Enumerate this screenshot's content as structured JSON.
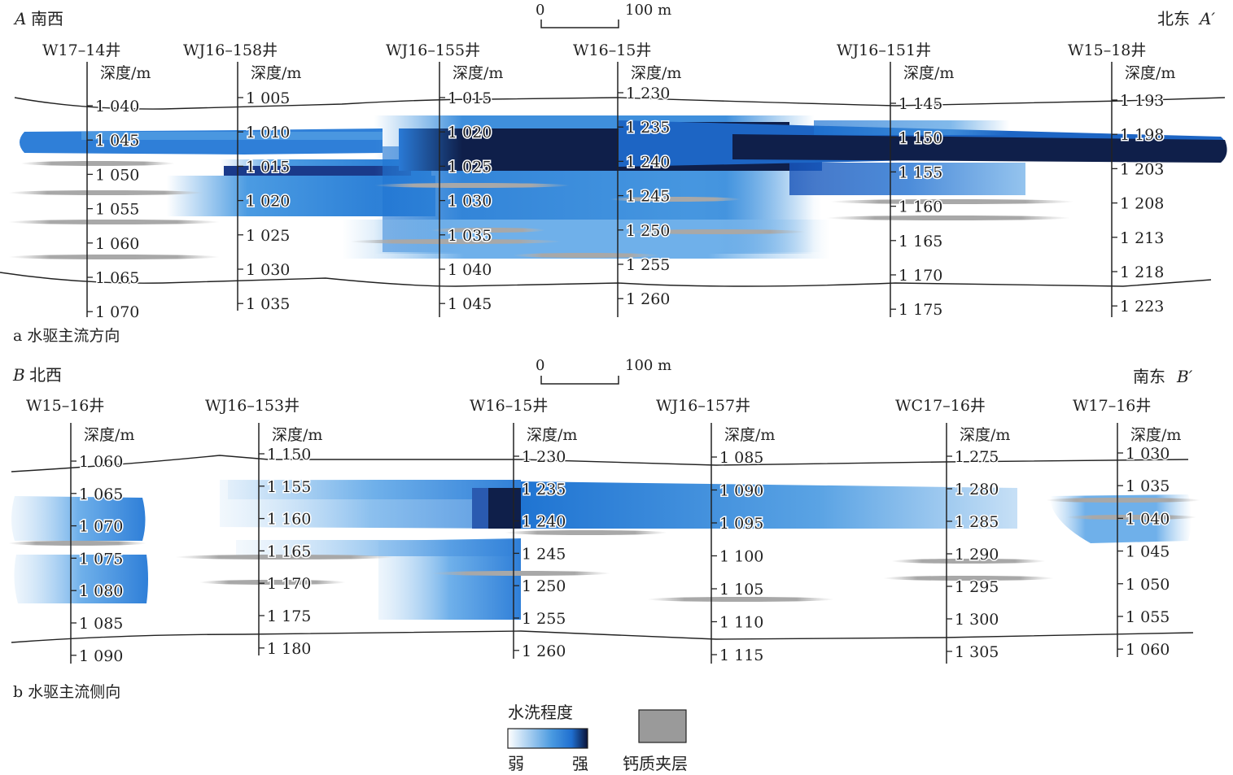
{
  "section_a": {
    "left_letter": "A",
    "left_dir": "南西",
    "right_dir": "北东",
    "right_letter": "A′",
    "caption": "a 水驱主流方向",
    "scale": {
      "zero": "0",
      "len": "100 m"
    },
    "wells": [
      {
        "name": "W17–14井",
        "depth_label": "深度/m",
        "ticks": [
          "1 040",
          "1 045",
          "1 050",
          "1 055",
          "1 060",
          "1 065",
          "1 070"
        ]
      },
      {
        "name": "WJ16–158井",
        "depth_label": "深度/m",
        "ticks": [
          "1 005",
          "1 010",
          "1 015",
          "1 020",
          "1 025",
          "1 030",
          "1 035"
        ]
      },
      {
        "name": "WJ16–155井",
        "depth_label": "深度/m",
        "ticks": [
          "1 015",
          "1 020",
          "1 025",
          "1 030",
          "1 035",
          "1 040",
          "1 045"
        ]
      },
      {
        "name": "W16–15井",
        "depth_label": "深度/m",
        "ticks": [
          "1 230",
          "1 235",
          "1 240",
          "1 245",
          "1 250",
          "1 255",
          "1 260"
        ]
      },
      {
        "name": "WJ16–151井",
        "depth_label": "深度/m",
        "ticks": [
          "1 145",
          "1 150",
          "1 155",
          "1 160",
          "1 165",
          "1 170",
          "1 175"
        ]
      },
      {
        "name": "W15–18井",
        "depth_label": "深度/m",
        "ticks": [
          "1 193",
          "1 198",
          "1 203",
          "1 208",
          "1 213",
          "1 218",
          "1 223"
        ]
      }
    ]
  },
  "section_b": {
    "left_letter": "B",
    "left_dir": "北西",
    "right_dir": "南东",
    "right_letter": "B′",
    "caption": "b 水驱主流侧向",
    "scale": {
      "zero": "0",
      "len": "100 m"
    },
    "wells": [
      {
        "name": "W15–16井",
        "depth_label": "深度/m",
        "ticks": [
          "1 060",
          "1 065",
          "1 070",
          "1 075",
          "1 080",
          "1 085",
          "1 090"
        ]
      },
      {
        "name": "WJ16–153井",
        "depth_label": "深度/m",
        "ticks": [
          "1 150",
          "1 155",
          "1 160",
          "1 165",
          "1 170",
          "1 175",
          "1 180"
        ]
      },
      {
        "name": "W16–15井",
        "depth_label": "深度/m",
        "ticks": [
          "1 230",
          "1 235",
          "1 240",
          "1 245",
          "1 250",
          "1 255",
          "1 260"
        ]
      },
      {
        "name": "WJ16–157井",
        "depth_label": "深度/m",
        "ticks": [
          "1 085",
          "1 090",
          "1 095",
          "1 100",
          "1 105",
          "1 110",
          "1 115"
        ]
      },
      {
        "name": "WC17–16井",
        "depth_label": "深度/m",
        "ticks": [
          "1 275",
          "1 280",
          "1 285",
          "1 290",
          "1 295",
          "1 300",
          "1 305"
        ]
      },
      {
        "name": "W17–16井",
        "depth_label": "深度/m",
        "ticks": [
          "1 030",
          "1 035",
          "1 040",
          "1 045",
          "1 050",
          "1 055",
          "1 060"
        ]
      }
    ]
  },
  "legend": {
    "title": "水洗程度",
    "weak": "弱",
    "strong": "强",
    "calc_label": "钙质夹层",
    "colors": {
      "weak": "#e8f3fb",
      "mid": "#3f8fdc",
      "strong": "#0f1f4a",
      "calc": "#9a9a9a"
    }
  }
}
